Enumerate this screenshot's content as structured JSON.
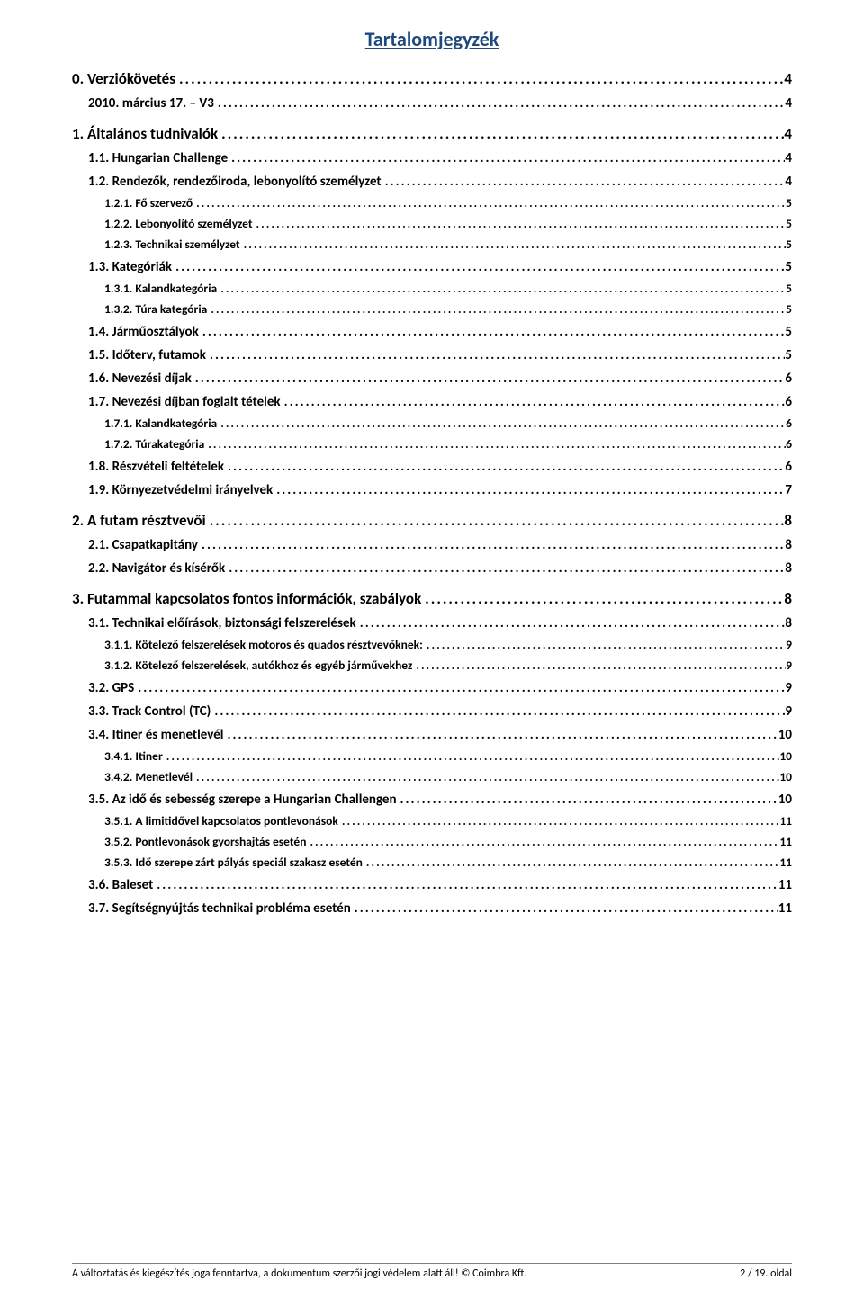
{
  "title": "Tartalomjegyzék",
  "colors": {
    "title_color": "#1f497d",
    "text_color": "#000000",
    "background": "#ffffff",
    "footer_border": "#7f7f7f"
  },
  "typography": {
    "title_fontsize": 22,
    "level0_fontsize": 17,
    "level1_fontsize": 15,
    "level2_fontsize": 13.5,
    "footer_fontsize": 12,
    "font_family": "Calibri"
  },
  "entries": [
    {
      "level": 0,
      "label": "0. Verziókövetés",
      "page": "4"
    },
    {
      "level": 1,
      "label": "2010. március 17. – V3",
      "page": "4"
    },
    {
      "level": 0,
      "label": "1. Általános tudnivalók",
      "page": "4"
    },
    {
      "level": 1,
      "label": "1.1. Hungarian Challenge",
      "page": "4"
    },
    {
      "level": 1,
      "label": "1.2. Rendezők, rendezőiroda, lebonyolító személyzet",
      "page": "4"
    },
    {
      "level": 2,
      "label": "1.2.1. Fő szervező",
      "page": "5"
    },
    {
      "level": 2,
      "label": "1.2.2. Lebonyolító személyzet",
      "page": "5"
    },
    {
      "level": 2,
      "label": "1.2.3. Technikai személyzet",
      "page": "5"
    },
    {
      "level": 1,
      "label": "1.3. Kategóriák",
      "page": "5"
    },
    {
      "level": 2,
      "label": "1.3.1. Kalandkategória",
      "page": "5"
    },
    {
      "level": 2,
      "label": "1.3.2. Túra kategória",
      "page": "5"
    },
    {
      "level": 1,
      "label": "1.4. Járműosztályok",
      "page": "5"
    },
    {
      "level": 1,
      "label": "1.5. Időterv, futamok",
      "page": "5"
    },
    {
      "level": 1,
      "label": "1.6. Nevezési díjak",
      "page": "6"
    },
    {
      "level": 1,
      "label": "1.7. Nevezési díjban foglalt tételek",
      "page": "6"
    },
    {
      "level": 2,
      "label": "1.7.1. Kalandkategória",
      "page": "6"
    },
    {
      "level": 2,
      "label": "1.7.2. Túrakategória",
      "page": "6"
    },
    {
      "level": 1,
      "label": "1.8. Részvételi feltételek",
      "page": "6"
    },
    {
      "level": 1,
      "label": "1.9. Környezetvédelmi irányelvek",
      "page": "7"
    },
    {
      "level": 0,
      "label": "2. A futam résztvevői",
      "page": "8"
    },
    {
      "level": 1,
      "label": "2.1. Csapatkapitány",
      "page": "8"
    },
    {
      "level": 1,
      "label": "2.2. Navigátor és kísérők",
      "page": "8"
    },
    {
      "level": 0,
      "label": "3. Futammal kapcsolatos fontos információk, szabályok",
      "page": "8"
    },
    {
      "level": 1,
      "label": "3.1. Technikai előírások, biztonsági felszerelések",
      "page": "8"
    },
    {
      "level": 2,
      "label": "3.1.1. Kötelező felszerelések motoros és quados résztvevőknek:",
      "page": "9"
    },
    {
      "level": 2,
      "label": "3.1.2. Kötelező felszerelések, autókhoz és egyéb járművekhez",
      "page": "9"
    },
    {
      "level": 1,
      "label": "3.2. GPS",
      "page": "9"
    },
    {
      "level": 1,
      "label": "3.3. Track Control (TC)",
      "page": "9"
    },
    {
      "level": 1,
      "label": "3.4. Itiner és menetlevél",
      "page": "10"
    },
    {
      "level": 2,
      "label": "3.4.1. Itiner",
      "page": "10"
    },
    {
      "level": 2,
      "label": "3.4.2. Menetlevél",
      "page": "10"
    },
    {
      "level": 1,
      "label": "3.5. Az idő és sebesség szerepe a Hungarian Challengen",
      "page": "10"
    },
    {
      "level": 2,
      "label": "3.5.1. A limitidővel kapcsolatos pontlevonások",
      "page": "11"
    },
    {
      "level": 2,
      "label": "3.5.2. Pontlevonások gyorshajtás esetén",
      "page": "11"
    },
    {
      "level": 2,
      "label": "3.5.3. Idő szerepe zárt pályás speciál szakasz esetén",
      "page": "11"
    },
    {
      "level": 1,
      "label": "3.6. Baleset",
      "page": "11"
    },
    {
      "level": 1,
      "label": "3.7. Segítségnyújtás technikai probléma esetén",
      "page": "11"
    }
  ],
  "footer": {
    "left": "A változtatás és kiegészítés joga fenntartva, a dokumentum szerzői jogi védelem alatt áll! © Coimbra Kft.",
    "right": "2 / 19. oldal"
  }
}
